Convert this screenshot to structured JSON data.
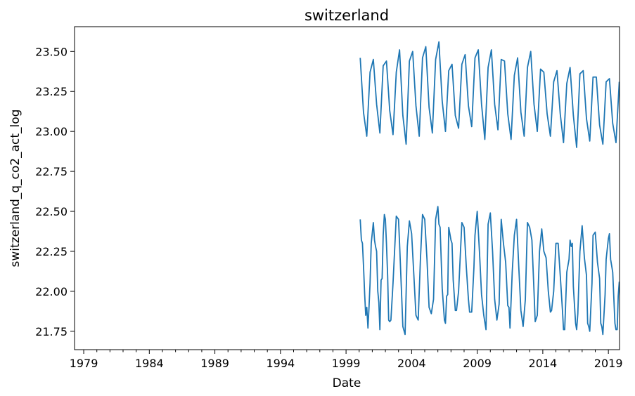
{
  "chart_data": {
    "type": "line",
    "title": "switzerland",
    "xlabel": "Date",
    "ylabel": "switzerland_q_co2_act_log",
    "xlim": [
      1978.3,
      2019.85
    ],
    "ylim": [
      21.635,
      23.655
    ],
    "x_ticks": [
      "1979",
      "1984",
      "1989",
      "1994",
      "1999",
      "2004",
      "2009",
      "2014",
      "2019"
    ],
    "y_ticks": [
      "21.75",
      "22.00",
      "22.25",
      "22.50",
      "22.75",
      "23.00",
      "23.25",
      "23.50"
    ],
    "grid": false,
    "line_color": "#1f77b4",
    "series": [
      {
        "values": [
          [
            2000.08,
            23.46
          ],
          [
            2000.33,
            23.12
          ],
          [
            2000.58,
            22.97
          ],
          [
            2000.83,
            23.37
          ],
          [
            2001.08,
            23.45
          ],
          [
            2001.33,
            23.17
          ],
          [
            2001.58,
            22.99
          ],
          [
            2001.83,
            23.41
          ],
          [
            2002.08,
            23.44
          ],
          [
            2002.33,
            23.13
          ],
          [
            2002.58,
            22.98
          ],
          [
            2002.83,
            23.37
          ],
          [
            2003.08,
            23.51
          ],
          [
            2003.33,
            23.1
          ],
          [
            2003.58,
            22.92
          ],
          [
            2003.83,
            23.44
          ],
          [
            2004.08,
            23.5
          ],
          [
            2004.33,
            23.16
          ],
          [
            2004.58,
            22.97
          ],
          [
            2004.83,
            23.46
          ],
          [
            2005.08,
            23.53
          ],
          [
            2005.33,
            23.15
          ],
          [
            2005.58,
            22.99
          ],
          [
            2005.83,
            23.45
          ],
          [
            2006.08,
            23.56
          ],
          [
            2006.33,
            23.19
          ],
          [
            2006.58,
            23.0
          ],
          [
            2006.83,
            23.38
          ],
          [
            2007.08,
            23.42
          ],
          [
            2007.33,
            23.1
          ],
          [
            2007.58,
            23.02
          ],
          [
            2007.83,
            23.42
          ],
          [
            2008.08,
            23.48
          ],
          [
            2008.33,
            23.16
          ],
          [
            2008.58,
            23.03
          ],
          [
            2008.83,
            23.46
          ],
          [
            2009.08,
            23.51
          ],
          [
            2009.33,
            23.17
          ],
          [
            2009.58,
            22.95
          ],
          [
            2009.83,
            23.4
          ],
          [
            2010.08,
            23.51
          ],
          [
            2010.33,
            23.17
          ],
          [
            2010.58,
            23.01
          ],
          [
            2010.83,
            23.45
          ],
          [
            2011.08,
            23.44
          ],
          [
            2011.33,
            23.11
          ],
          [
            2011.58,
            22.95
          ],
          [
            2011.83,
            23.35
          ],
          [
            2012.08,
            23.46
          ],
          [
            2012.33,
            23.12
          ],
          [
            2012.58,
            22.97
          ],
          [
            2012.83,
            23.4
          ],
          [
            2013.08,
            23.5
          ],
          [
            2013.33,
            23.17
          ],
          [
            2013.58,
            23.0
          ],
          [
            2013.83,
            23.39
          ],
          [
            2014.08,
            23.37
          ],
          [
            2014.33,
            23.11
          ],
          [
            2014.58,
            22.97
          ],
          [
            2014.83,
            23.31
          ],
          [
            2015.08,
            23.38
          ],
          [
            2015.33,
            23.11
          ],
          [
            2015.58,
            22.93
          ],
          [
            2015.83,
            23.3
          ],
          [
            2016.08,
            23.4
          ],
          [
            2016.33,
            23.1
          ],
          [
            2016.58,
            22.9
          ],
          [
            2016.83,
            23.36
          ],
          [
            2017.08,
            23.38
          ],
          [
            2017.33,
            23.08
          ],
          [
            2017.58,
            22.94
          ],
          [
            2017.83,
            23.34
          ],
          [
            2018.08,
            23.34
          ],
          [
            2018.33,
            23.04
          ],
          [
            2018.58,
            22.92
          ],
          [
            2018.83,
            23.31
          ],
          [
            2019.08,
            23.33
          ],
          [
            2019.33,
            23.05
          ],
          [
            2019.58,
            22.93
          ],
          [
            2019.83,
            23.31
          ]
        ]
      },
      {
        "values": [
          [
            2000.08,
            22.45
          ],
          [
            2000.17,
            22.32
          ],
          [
            2000.25,
            22.3
          ],
          [
            2000.33,
            22.16
          ],
          [
            2000.42,
            21.98
          ],
          [
            2000.5,
            21.85
          ],
          [
            2000.58,
            21.9
          ],
          [
            2000.67,
            21.77
          ],
          [
            2000.75,
            21.9
          ],
          [
            2000.83,
            22.05
          ],
          [
            2000.92,
            22.3
          ],
          [
            2001.08,
            22.43
          ],
          [
            2001.17,
            22.32
          ],
          [
            2001.25,
            22.28
          ],
          [
            2001.33,
            22.25
          ],
          [
            2001.42,
            22.0
          ],
          [
            2001.5,
            21.93
          ],
          [
            2001.58,
            21.76
          ],
          [
            2001.67,
            22.07
          ],
          [
            2001.75,
            22.08
          ],
          [
            2001.83,
            22.35
          ],
          [
            2001.92,
            22.48
          ],
          [
            2002.0,
            22.45
          ],
          [
            2002.08,
            22.3
          ],
          [
            2002.17,
            22.1
          ],
          [
            2002.25,
            21.82
          ],
          [
            2002.33,
            21.81
          ],
          [
            2002.42,
            21.82
          ],
          [
            2002.58,
            22.05
          ],
          [
            2002.83,
            22.47
          ],
          [
            2003.0,
            22.45
          ],
          [
            2003.08,
            22.3
          ],
          [
            2003.25,
            21.95
          ],
          [
            2003.33,
            21.78
          ],
          [
            2003.5,
            21.73
          ],
          [
            2003.67,
            22.28
          ],
          [
            2003.83,
            22.44
          ],
          [
            2004.0,
            22.36
          ],
          [
            2004.17,
            22.1
          ],
          [
            2004.33,
            21.85
          ],
          [
            2004.5,
            21.82
          ],
          [
            2004.67,
            22.2
          ],
          [
            2004.83,
            22.48
          ],
          [
            2005.0,
            22.45
          ],
          [
            2005.17,
            22.2
          ],
          [
            2005.33,
            21.9
          ],
          [
            2005.5,
            21.86
          ],
          [
            2005.67,
            21.95
          ],
          [
            2005.83,
            22.45
          ],
          [
            2006.0,
            22.53
          ],
          [
            2006.08,
            22.42
          ],
          [
            2006.17,
            22.4
          ],
          [
            2006.33,
            22.02
          ],
          [
            2006.5,
            21.82
          ],
          [
            2006.58,
            21.8
          ],
          [
            2006.67,
            21.97
          ],
          [
            2006.75,
            21.98
          ],
          [
            2006.83,
            22.4
          ],
          [
            2007.0,
            22.32
          ],
          [
            2007.08,
            22.3
          ],
          [
            2007.17,
            22.07
          ],
          [
            2007.33,
            21.88
          ],
          [
            2007.42,
            21.88
          ],
          [
            2007.58,
            22.0
          ],
          [
            2007.83,
            22.43
          ],
          [
            2008.0,
            22.4
          ],
          [
            2008.17,
            22.15
          ],
          [
            2008.33,
            21.95
          ],
          [
            2008.42,
            21.87
          ],
          [
            2008.58,
            21.87
          ],
          [
            2008.75,
            22.15
          ],
          [
            2008.83,
            22.35
          ],
          [
            2009.0,
            22.5
          ],
          [
            2009.17,
            22.25
          ],
          [
            2009.33,
            21.98
          ],
          [
            2009.5,
            21.85
          ],
          [
            2009.67,
            21.76
          ],
          [
            2009.83,
            22.42
          ],
          [
            2010.0,
            22.49
          ],
          [
            2010.17,
            22.25
          ],
          [
            2010.33,
            21.95
          ],
          [
            2010.5,
            21.82
          ],
          [
            2010.67,
            21.92
          ],
          [
            2010.83,
            22.45
          ],
          [
            2011.0,
            22.3
          ],
          [
            2011.17,
            22.18
          ],
          [
            2011.33,
            21.91
          ],
          [
            2011.42,
            21.9
          ],
          [
            2011.5,
            21.77
          ],
          [
            2011.67,
            22.12
          ],
          [
            2011.83,
            22.35
          ],
          [
            2012.0,
            22.45
          ],
          [
            2012.17,
            22.15
          ],
          [
            2012.33,
            21.88
          ],
          [
            2012.5,
            21.78
          ],
          [
            2012.67,
            21.95
          ],
          [
            2012.83,
            22.43
          ],
          [
            2013.0,
            22.4
          ],
          [
            2013.17,
            22.32
          ],
          [
            2013.33,
            22.0
          ],
          [
            2013.42,
            21.81
          ],
          [
            2013.58,
            21.85
          ],
          [
            2013.75,
            22.25
          ],
          [
            2013.92,
            22.39
          ],
          [
            2014.08,
            22.25
          ],
          [
            2014.25,
            22.21
          ],
          [
            2014.42,
            22.0
          ],
          [
            2014.58,
            21.87
          ],
          [
            2014.67,
            21.88
          ],
          [
            2014.83,
            22.0
          ],
          [
            2015.0,
            22.3
          ],
          [
            2015.17,
            22.3
          ],
          [
            2015.33,
            22.1
          ],
          [
            2015.5,
            21.88
          ],
          [
            2015.58,
            21.76
          ],
          [
            2015.67,
            21.76
          ],
          [
            2015.83,
            22.12
          ],
          [
            2016.0,
            22.2
          ],
          [
            2016.08,
            22.32
          ],
          [
            2016.17,
            22.28
          ],
          [
            2016.25,
            22.3
          ],
          [
            2016.33,
            22.03
          ],
          [
            2016.5,
            21.8
          ],
          [
            2016.58,
            21.76
          ],
          [
            2016.67,
            21.86
          ],
          [
            2016.83,
            22.25
          ],
          [
            2017.0,
            22.41
          ],
          [
            2017.17,
            22.21
          ],
          [
            2017.33,
            22.1
          ],
          [
            2017.42,
            21.8
          ],
          [
            2017.5,
            21.78
          ],
          [
            2017.58,
            21.75
          ],
          [
            2017.75,
            22.05
          ],
          [
            2017.83,
            22.35
          ],
          [
            2018.0,
            22.37
          ],
          [
            2018.17,
            22.18
          ],
          [
            2018.33,
            22.08
          ],
          [
            2018.42,
            21.8
          ],
          [
            2018.5,
            21.78
          ],
          [
            2018.58,
            21.73
          ],
          [
            2018.75,
            21.98
          ],
          [
            2018.83,
            22.2
          ],
          [
            2019.0,
            22.33
          ],
          [
            2019.08,
            22.36
          ],
          [
            2019.17,
            22.2
          ],
          [
            2019.33,
            22.12
          ],
          [
            2019.5,
            21.8
          ],
          [
            2019.58,
            21.76
          ],
          [
            2019.67,
            21.76
          ],
          [
            2019.75,
            21.97
          ],
          [
            2019.83,
            22.06
          ]
        ]
      }
    ]
  }
}
